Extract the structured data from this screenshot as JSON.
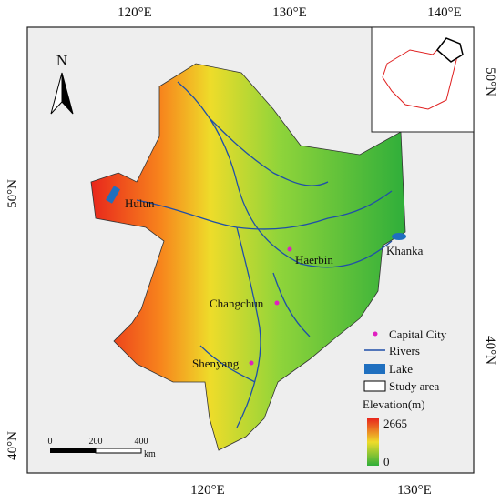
{
  "map": {
    "north_label": "N",
    "top_ticks": [
      "120°E",
      "130°E",
      "140°E"
    ],
    "bottom_ticks": [
      "120°E",
      "130°E"
    ],
    "left_ticks": [
      "50°N",
      "40°N"
    ],
    "right_ticks": [
      "50°N",
      "40°N"
    ],
    "places": [
      {
        "label": "Hulun"
      },
      {
        "label": "Haerbin"
      },
      {
        "label": "Khanka"
      },
      {
        "label": "Changchun"
      },
      {
        "label": "Shenyang"
      }
    ],
    "legend": {
      "items": [
        "Capital City",
        "Rivers",
        "Lake",
        "Study area"
      ],
      "elevation_title": "Elevation(m)",
      "elevation_max": 2665,
      "elevation_min": 0
    },
    "scale_bar": {
      "labels": [
        0,
        200,
        400
      ],
      "unit": "km"
    }
  }
}
